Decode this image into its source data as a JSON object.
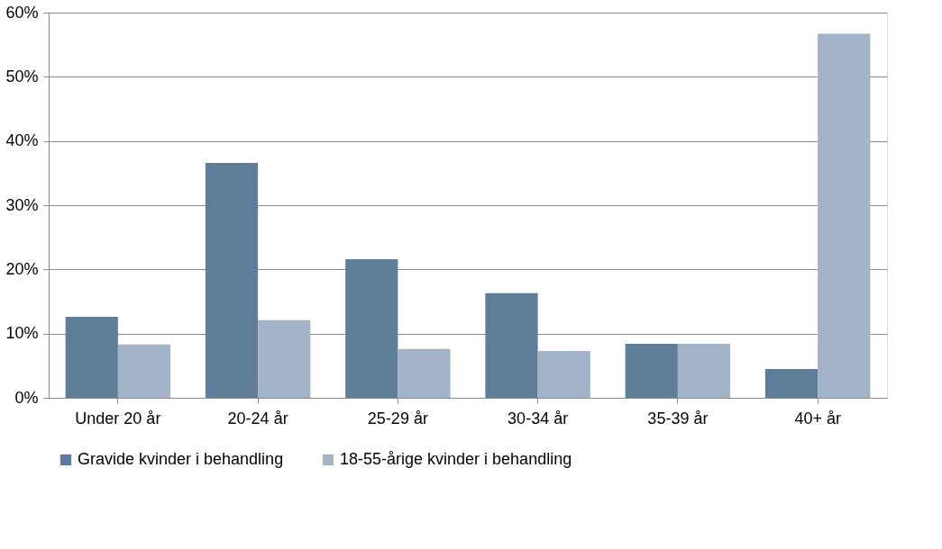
{
  "chart_data": {
    "type": "bar",
    "categories": [
      "Under 20 år",
      "20-24 år",
      "25-29 år",
      "30-34 år",
      "35-39 år",
      "40+ år"
    ],
    "series": [
      {
        "name": "Gravide kvinder i behandling",
        "color": "#5f7d99",
        "values": [
          12.6,
          36.6,
          21.6,
          16.3,
          8.4,
          4.5
        ]
      },
      {
        "name": "18-55-årige kvinder i behandling",
        "color": "#a3b4c8",
        "values": [
          8.3,
          12.1,
          7.6,
          7.3,
          8.4,
          56.7
        ]
      }
    ],
    "ylim": [
      0,
      60
    ],
    "yticks": [
      {
        "value": 0,
        "label": "0%"
      },
      {
        "value": 10,
        "label": "10%"
      },
      {
        "value": 20,
        "label": "20%"
      },
      {
        "value": 30,
        "label": "30%"
      },
      {
        "value": 40,
        "label": "40%"
      },
      {
        "value": 50,
        "label": "50%"
      },
      {
        "value": 60,
        "label": "60%"
      }
    ],
    "grid": "y",
    "legend": "bottom"
  }
}
